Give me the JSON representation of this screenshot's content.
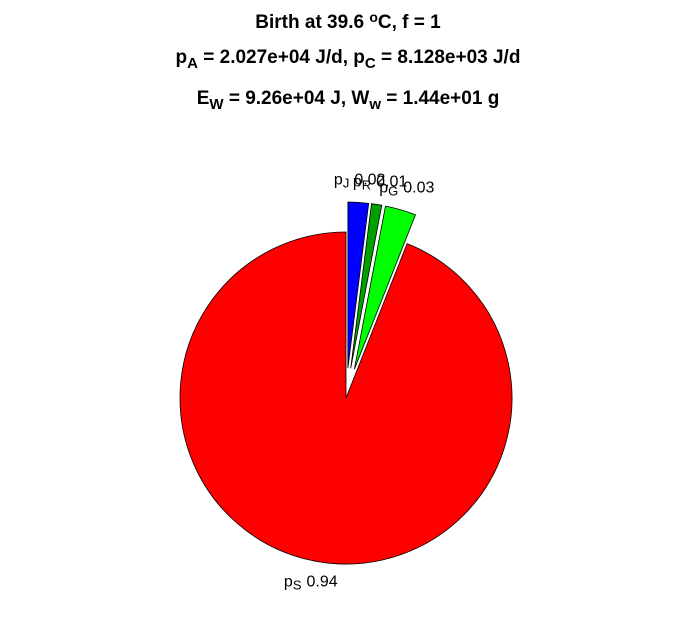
{
  "chart_data": {
    "type": "pie",
    "title_lines": [
      [
        {
          "text": "Birth at 39.6 "
        },
        {
          "text": "o",
          "style": "sup"
        },
        {
          "text": "C, f = 1"
        }
      ],
      [
        {
          "text": "p"
        },
        {
          "text": "A",
          "style": "sub"
        },
        {
          "text": " = 2.027e+04 J/d, p"
        },
        {
          "text": "C",
          "style": "sub"
        },
        {
          "text": " = 8.128e+03 J/d"
        }
      ],
      [
        {
          "text": "E"
        },
        {
          "text": "W",
          "style": "sub"
        },
        {
          "text": " = 9.26e+04 J, W"
        },
        {
          "text": "w",
          "style": "sub"
        },
        {
          "text": " = 1.44e+01 g"
        }
      ]
    ],
    "slices": [
      {
        "name": "p",
        "sub": "J",
        "value": 0.02,
        "color": "#0000ff",
        "explode": true
      },
      {
        "name": "p",
        "sub": "R",
        "value": 0.01,
        "color": "#00a000",
        "explode": true
      },
      {
        "name": "p",
        "sub": "G",
        "value": 0.03,
        "color": "#00ff00",
        "explode": true
      },
      {
        "name": "p",
        "sub": "S",
        "value": 0.94,
        "color": "#ff0000",
        "explode": false
      }
    ]
  }
}
